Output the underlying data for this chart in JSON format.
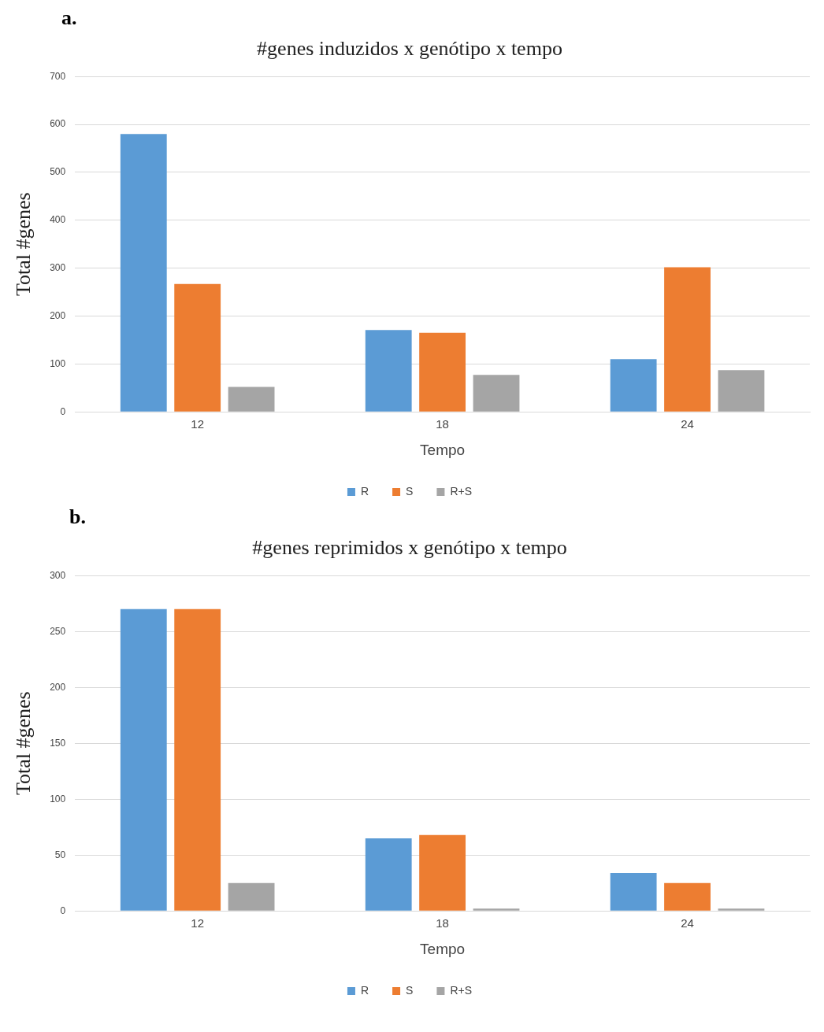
{
  "chart_data": [
    {
      "type": "bar",
      "title": "#genes induzidos x genótipo x tempo",
      "xlabel": "Tempo",
      "ylabel": "Total #genes",
      "annotations": [
        "a."
      ],
      "categories": [
        "12",
        "18",
        "24"
      ],
      "series": [
        {
          "name": "R",
          "color": "#5b9bd5",
          "values": [
            580,
            171,
            110
          ]
        },
        {
          "name": "S",
          "color": "#ed7d31",
          "values": [
            267,
            165,
            302
          ]
        },
        {
          "name": "R+S",
          "color": "#a5a5a5",
          "values": [
            52,
            77,
            87
          ]
        }
      ],
      "ylim": [
        0,
        700
      ],
      "yticks": [
        0,
        100,
        200,
        300,
        400,
        500,
        600,
        700
      ],
      "grid": "y",
      "legend": "bottom"
    },
    {
      "type": "bar",
      "title": "#genes reprimidos x genótipo x tempo",
      "xlabel": "Tempo",
      "ylabel": "Total #genes",
      "annotations": [
        "b."
      ],
      "categories": [
        "12",
        "18",
        "24"
      ],
      "series": [
        {
          "name": "R",
          "color": "#5b9bd5",
          "values": [
            270,
            65,
            34
          ]
        },
        {
          "name": "S",
          "color": "#ed7d31",
          "values": [
            270,
            68,
            25
          ]
        },
        {
          "name": "R+S",
          "color": "#a5a5a5",
          "values": [
            25,
            2,
            2
          ]
        }
      ],
      "ylim": [
        0,
        300
      ],
      "yticks": [
        0,
        50,
        100,
        150,
        200,
        250,
        300
      ],
      "grid": "y",
      "legend": "bottom"
    }
  ]
}
